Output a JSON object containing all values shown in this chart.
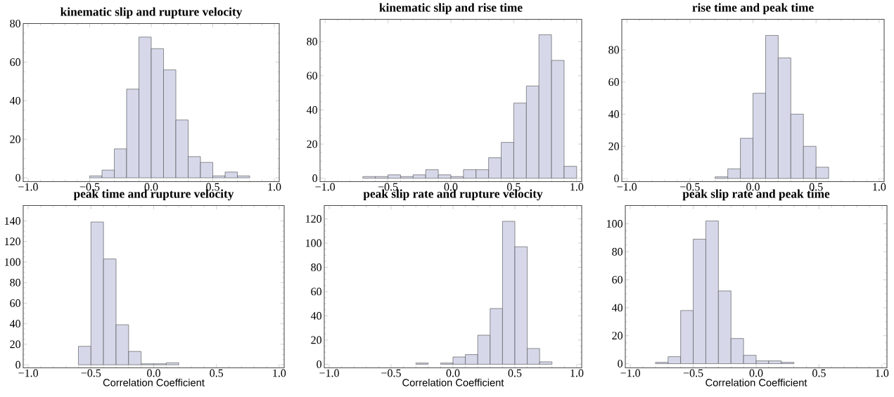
{
  "chart_data": [
    {
      "type": "histogram",
      "title": "kinematic slip and rupture velocity",
      "bins": [
        -0.5,
        -0.4,
        -0.3,
        -0.2,
        -0.1,
        0.0,
        0.1,
        0.2,
        0.3,
        0.4,
        0.5,
        0.6,
        0.7,
        0.8
      ],
      "values": [
        1,
        4,
        15,
        46,
        73,
        67,
        56,
        30,
        11,
        8,
        1,
        3,
        1
      ],
      "color": "#d6d8ea",
      "xlim": [
        -1.04,
        1.04
      ],
      "ylim": [
        -2,
        80
      ],
      "xticks": [
        {
          "value": -1,
          "label": "−1.0"
        },
        {
          "value": -0.5,
          "label": "−0.5"
        },
        {
          "value": 0,
          "label": "0.0"
        },
        {
          "value": 0.5,
          "label": "0.5"
        },
        {
          "value": 1,
          "label": "1.0"
        }
      ],
      "yticks": [
        0,
        20,
        40,
        60,
        80
      ]
    },
    {
      "type": "histogram",
      "title": "kinematic slip and rise time",
      "bins": [
        -0.7,
        -0.6,
        -0.5,
        -0.4,
        -0.3,
        -0.2,
        -0.1,
        0.0,
        0.1,
        0.2,
        0.3,
        0.4,
        0.5,
        0.6,
        0.7,
        0.8,
        0.9,
        1.0
      ],
      "values": [
        1,
        1,
        2,
        1,
        2,
        5,
        2,
        1,
        5,
        5,
        12,
        21,
        44,
        54,
        84,
        69,
        7
      ],
      "color": "#d6d8ea",
      "xlim": [
        -1.04,
        1.04
      ],
      "ylim": [
        -2,
        93
      ],
      "xticks": [
        {
          "value": -1,
          "label": "−1.0"
        },
        {
          "value": -0.5,
          "label": "−0.5"
        },
        {
          "value": 0,
          "label": "0.0"
        },
        {
          "value": 0.5,
          "label": "0.5"
        },
        {
          "value": 1,
          "label": "1.0"
        }
      ],
      "yticks": [
        0,
        20,
        40,
        60,
        80
      ]
    },
    {
      "type": "histogram",
      "title": "rise time and peak time",
      "bins": [
        -0.3,
        -0.2,
        -0.1,
        0.0,
        0.1,
        0.2,
        0.3,
        0.4,
        0.5,
        0.6
      ],
      "values": [
        1,
        6,
        25,
        53,
        89,
        75,
        40,
        20,
        7
      ],
      "color": "#d6d8ea",
      "xlim": [
        -1.04,
        1.04
      ],
      "ylim": [
        -2,
        99
      ],
      "xticks": [
        {
          "value": -1,
          "label": "−1.0"
        },
        {
          "value": -0.5,
          "label": "−0.5"
        },
        {
          "value": 0,
          "label": "0.0"
        },
        {
          "value": 0.5,
          "label": "0.5"
        },
        {
          "value": 1,
          "label": "1.0"
        }
      ],
      "yticks": [
        0,
        20,
        40,
        60,
        80
      ]
    },
    {
      "type": "histogram",
      "title": "peak time and rupture velocity",
      "xlabel": "Correlation Coefficient",
      "bins": [
        -0.6,
        -0.5,
        -0.4,
        -0.3,
        -0.2,
        -0.1,
        0.0,
        0.1,
        0.2
      ],
      "values": [
        18,
        139,
        103,
        39,
        13,
        1,
        1,
        2
      ],
      "color": "#d6d8ea",
      "xlim": [
        -1.04,
        1.04
      ],
      "ylim": [
        -3,
        155
      ],
      "xticks": [
        {
          "value": -1,
          "label": "−1.0"
        },
        {
          "value": -0.5,
          "label": "−0.5"
        },
        {
          "value": 0,
          "label": "0.0"
        },
        {
          "value": 0.5,
          "label": "0.5"
        },
        {
          "value": 1,
          "label": "1.0"
        }
      ],
      "yticks": [
        0,
        20,
        40,
        60,
        80,
        100,
        120,
        140
      ]
    },
    {
      "type": "histogram",
      "title": "peak slip rate and rupture velocity",
      "xlabel": "Correlation Coefficient",
      "bins": [
        -0.3,
        -0.2,
        -0.1,
        0.0,
        0.1,
        0.2,
        0.3,
        0.4,
        0.5,
        0.6,
        0.7,
        0.8
      ],
      "values": [
        1,
        0,
        1,
        6,
        8,
        24,
        46,
        118,
        97,
        13,
        2
      ],
      "color": "#d6d8ea",
      "xlim": [
        -1.04,
        1.04
      ],
      "ylim": [
        -3,
        131
      ],
      "xticks": [
        {
          "value": -1,
          "label": "−1.0"
        },
        {
          "value": -0.5,
          "label": "−0.5"
        },
        {
          "value": 0,
          "label": "0.0"
        },
        {
          "value": 0.5,
          "label": "0.5"
        },
        {
          "value": 1,
          "label": "1.0"
        }
      ],
      "yticks": [
        0,
        20,
        40,
        60,
        80,
        100,
        120
      ]
    },
    {
      "type": "histogram",
      "title": "peak slip rate and peak time",
      "xlabel": "Correlation Coefficient",
      "bins": [
        -0.8,
        -0.7,
        -0.6,
        -0.5,
        -0.4,
        -0.3,
        -0.2,
        -0.1,
        0.0,
        0.1,
        0.2,
        0.3
      ],
      "values": [
        1,
        5,
        38,
        89,
        102,
        52,
        18,
        6,
        2,
        2,
        1
      ],
      "color": "#d6d8ea",
      "xlim": [
        -1.04,
        1.04
      ],
      "ylim": [
        -3,
        113
      ],
      "xticks": [
        {
          "value": -1,
          "label": "−1.0"
        },
        {
          "value": -0.5,
          "label": "−0.5"
        },
        {
          "value": 0,
          "label": "0.0"
        },
        {
          "value": 0.5,
          "label": "0.5"
        },
        {
          "value": 1,
          "label": "1.0"
        }
      ],
      "yticks": [
        0,
        20,
        40,
        60,
        80,
        100
      ]
    }
  ]
}
